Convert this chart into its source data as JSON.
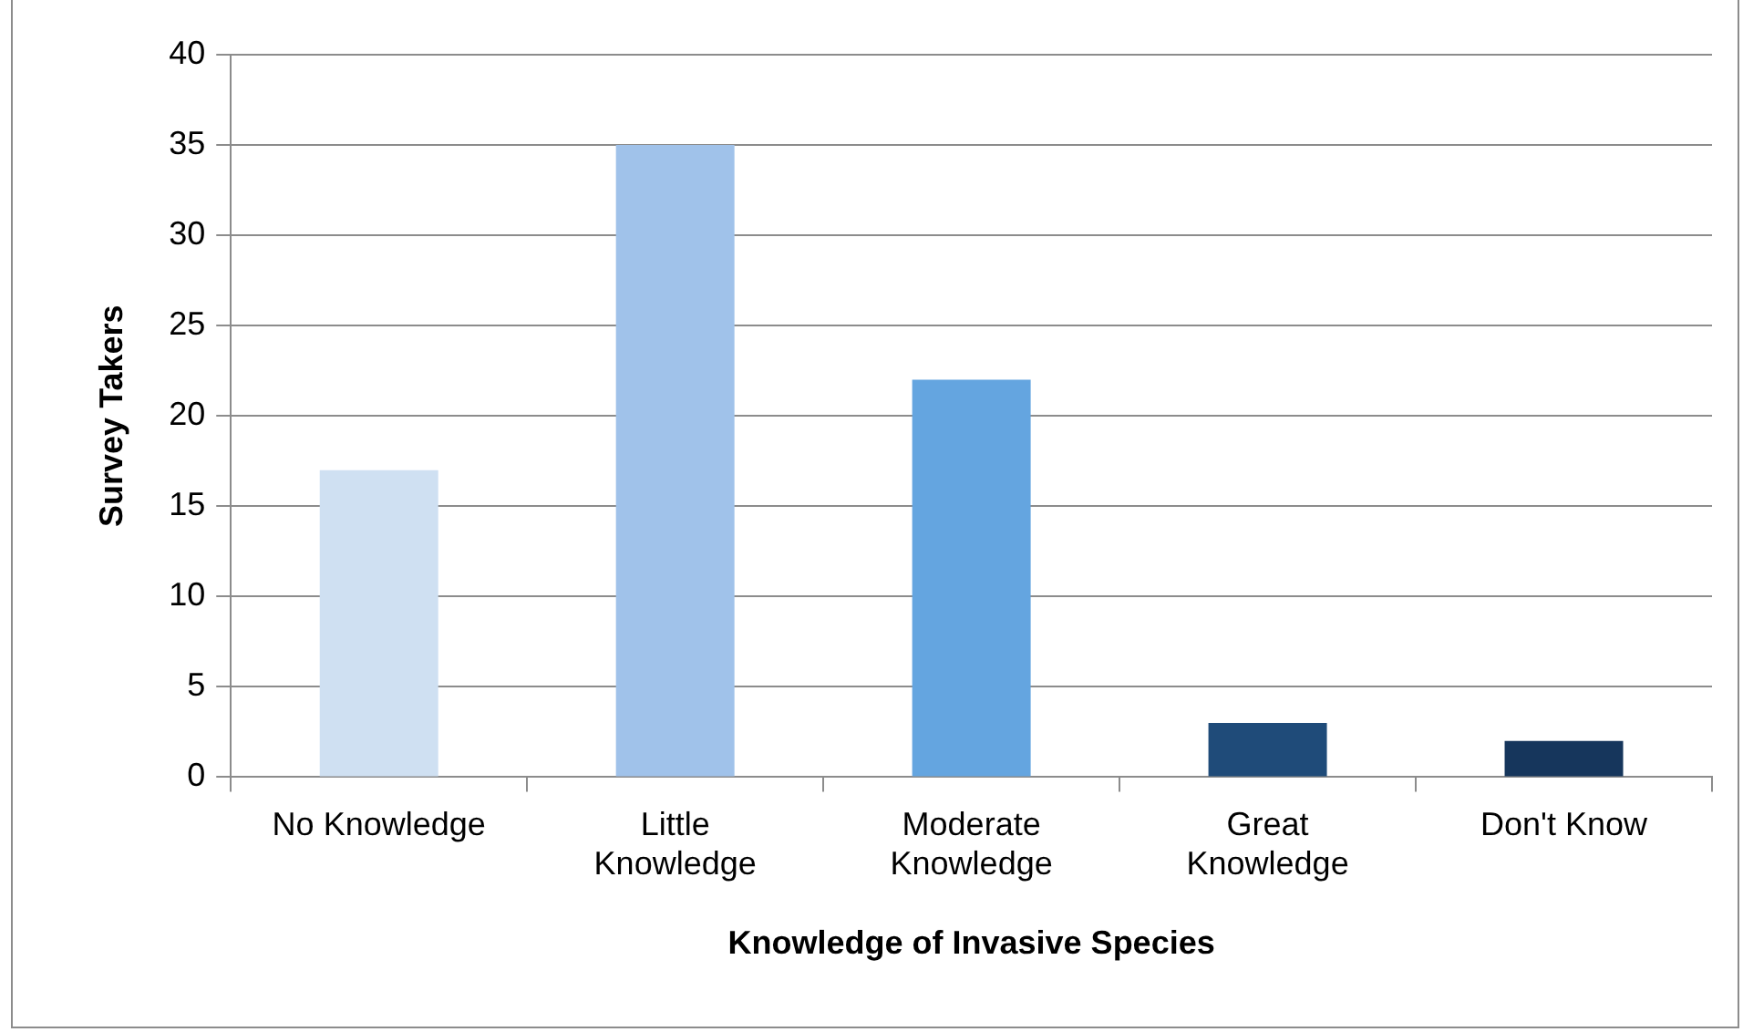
{
  "chart_data": {
    "type": "bar",
    "xlabel": "Knowledge of Invasive Species",
    "ylabel": "Survey Takers",
    "categories": [
      "No Knowledge",
      "Little Knowledge",
      "Moderate Knowledge",
      "Great Knowledge",
      "Don't Know"
    ],
    "values": [
      17,
      35,
      22,
      3,
      2
    ],
    "colors": [
      "#cfe0f2",
      "#a0c2ea",
      "#64a5e0",
      "#1f4b79",
      "#16365c"
    ],
    "ylim": [
      0,
      40
    ],
    "yticks": [
      0,
      5,
      10,
      15,
      20,
      25,
      30,
      35,
      40
    ],
    "grid": "y",
    "legend": false
  }
}
